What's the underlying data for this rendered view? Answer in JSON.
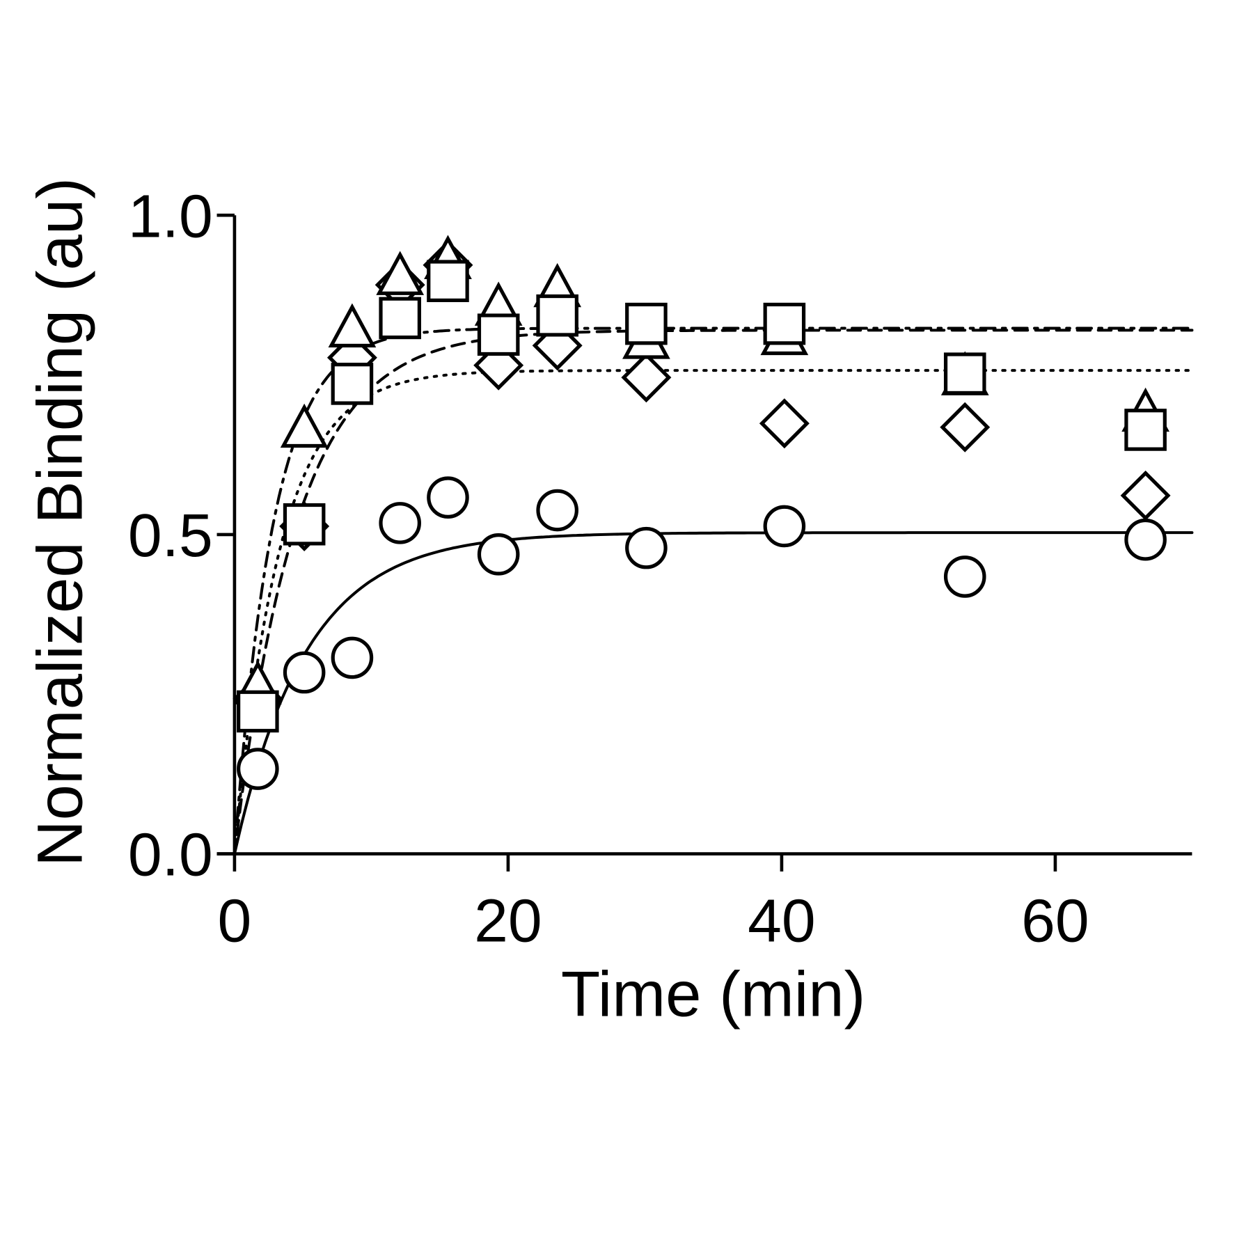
{
  "chart_data": {
    "type": "scatter",
    "title": "",
    "xlabel": "Time (min)",
    "ylabel": "Normalized Binding (au)",
    "xlim": [
      0,
      70
    ],
    "ylim": [
      0,
      1.0
    ],
    "xticks": [
      "0",
      "20",
      "40",
      "60"
    ],
    "xtick_values": [
      0,
      20,
      40,
      60
    ],
    "yticks": [
      "0.0",
      "0.5",
      "1.0"
    ],
    "ytick_values": [
      0,
      0.5,
      1.0
    ],
    "grid": false,
    "x": [
      1.7,
      5.1,
      8.6,
      12.1,
      15.6,
      19.3,
      23.6,
      30.1,
      40.2,
      53.4,
      66.6
    ],
    "series": [
      {
        "name": "circle",
        "marker": "circle",
        "line": "solid",
        "fit": {
          "plateau": 0.503,
          "k": 0.19
        },
        "values": [
          0.133,
          0.284,
          0.307,
          0.518,
          0.558,
          0.469,
          0.538,
          0.479,
          0.513,
          0.434,
          0.492
        ]
      },
      {
        "name": "square",
        "marker": "square",
        "line": "dashed",
        "fit": {
          "plateau": 0.82,
          "k": 0.22
        },
        "values": [
          0.223,
          0.516,
          0.736,
          0.839,
          0.897,
          0.813,
          0.843,
          0.83,
          0.83,
          0.752,
          0.664
        ]
      },
      {
        "name": "triangle",
        "marker": "triangle",
        "line": "dashdot",
        "fit": {
          "plateau": 0.823,
          "k": 0.35
        },
        "values": [
          0.262,
          0.664,
          0.821,
          0.903,
          0.928,
          0.855,
          0.884,
          0.803,
          0.809,
          0.746,
          0.689
        ]
      },
      {
        "name": "diamond",
        "marker": "diamond",
        "line": "dotted",
        "fit": {
          "plateau": 0.757,
          "k": 0.3
        },
        "values": [
          0.243,
          0.513,
          0.777,
          0.891,
          0.922,
          0.765,
          0.796,
          0.746,
          0.674,
          0.668,
          0.561
        ]
      }
    ]
  }
}
